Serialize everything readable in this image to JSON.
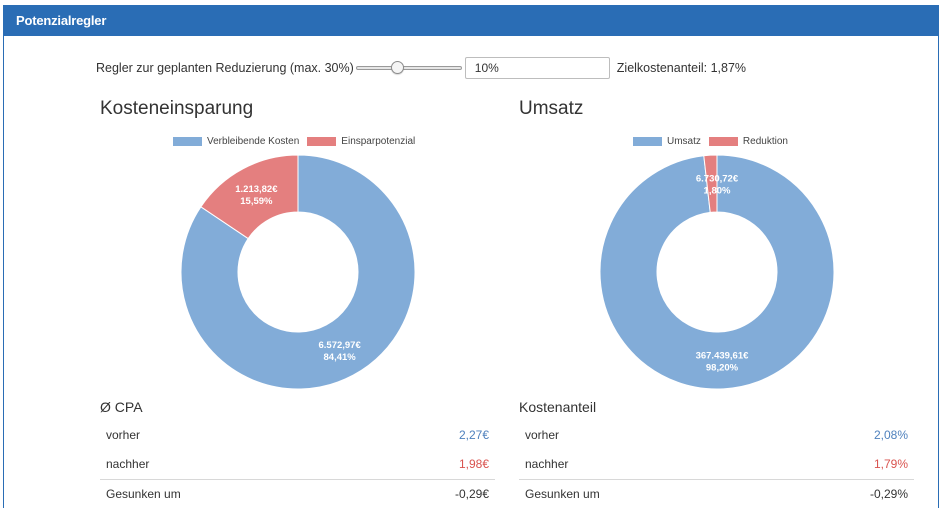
{
  "panel": {
    "title": "Potenzialregler"
  },
  "regulator": {
    "label": "Regler zur geplanten Reduzierung (max. 30%)",
    "slider_value_pct": 10,
    "slider_max_pct": 30,
    "input_value": "10%",
    "target_label": "Zielkostenanteil: 1,87%"
  },
  "colors": {
    "primary": "#2a6db5",
    "blue_series": "#82acd8",
    "red_series": "#e47f7f"
  },
  "costs": {
    "title": "Kosteneinsparung",
    "legend": [
      "Verbleibende Kosten",
      "Einsparpotenzial"
    ],
    "metric_title": "Ø CPA",
    "rows": [
      {
        "label": "vorher",
        "value": "2,27€"
      },
      {
        "label": "nachher",
        "value": "1,98€"
      },
      {
        "label": "Gesunken um",
        "value": "-0,29€"
      }
    ]
  },
  "revenue": {
    "title": "Umsatz",
    "legend": [
      "Umsatz",
      "Reduktion"
    ],
    "metric_title": "Kostenanteil",
    "rows": [
      {
        "label": "vorher",
        "value": "2,08%"
      },
      {
        "label": "nachher",
        "value": "1,79%"
      },
      {
        "label": "Gesunken um",
        "value": "-0,29%"
      }
    ]
  },
  "chart_data": [
    {
      "type": "pie",
      "title": "Kosteneinsparung",
      "categories": [
        "Verbleibende Kosten",
        "Einsparpotenzial"
      ],
      "values": [
        84.41,
        15.59
      ],
      "labels": [
        [
          "6.572,97€",
          "84,41%"
        ],
        [
          "1.213,82€",
          "15,59%"
        ]
      ],
      "colors": [
        "#82acd8",
        "#e47f7f"
      ],
      "legend": "top"
    },
    {
      "type": "pie",
      "title": "Umsatz",
      "categories": [
        "Umsatz",
        "Reduktion"
      ],
      "values": [
        98.2,
        1.8
      ],
      "labels": [
        [
          "367.439,61€",
          "98,20%"
        ],
        [
          "6.730,72€",
          "1,80%"
        ]
      ],
      "colors": [
        "#82acd8",
        "#e47f7f"
      ],
      "legend": "top"
    }
  ]
}
